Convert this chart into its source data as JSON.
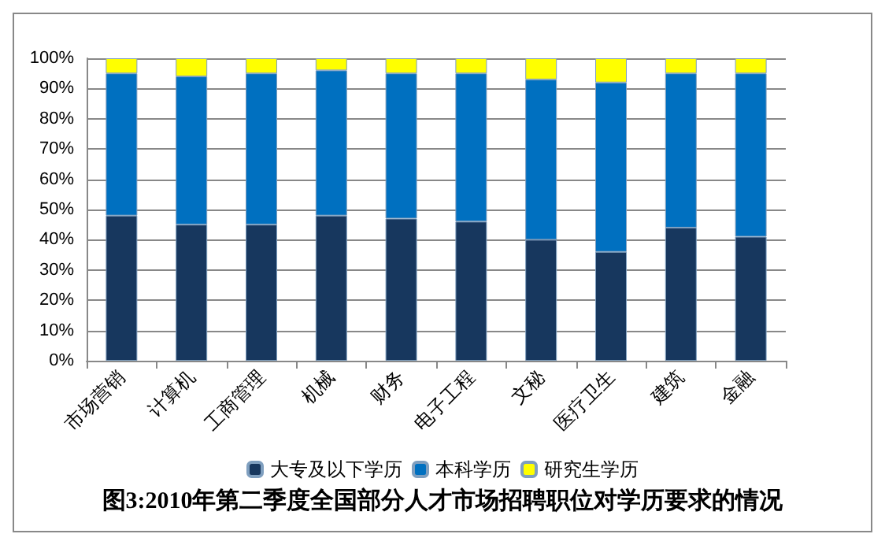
{
  "chart_data": {
    "type": "bar",
    "stacked": true,
    "title": "图3:2010年第二季度全国部分人才市场招聘职位对学历要求的情况",
    "categories": [
      "市场营销",
      "计算机",
      "工商管理",
      "机械",
      "财务",
      "电子工程",
      "文秘",
      "医疗卫生",
      "建筑",
      "金融"
    ],
    "series": [
      {
        "name": "大专及以下学历",
        "color": "#17375e",
        "values": [
          48,
          45,
          45,
          48,
          47,
          46,
          40,
          36,
          44,
          41
        ]
      },
      {
        "name": "本科学历",
        "color": "#0070c0",
        "values": [
          47,
          49,
          50,
          48,
          48,
          49,
          53,
          56,
          51,
          54
        ]
      },
      {
        "name": "研究生学历",
        "color": "#ffff00",
        "values": [
          5,
          6,
          5,
          4,
          5,
          5,
          7,
          8,
          5,
          5
        ]
      }
    ],
    "ylim": [
      0,
      100
    ],
    "yticks": [
      {
        "value": 0,
        "label": "0%"
      },
      {
        "value": 10,
        "label": "10%"
      },
      {
        "value": 20,
        "label": "20%"
      },
      {
        "value": 30,
        "label": "30%"
      },
      {
        "value": 40,
        "label": "40%"
      },
      {
        "value": 50,
        "label": "50%"
      },
      {
        "value": 60,
        "label": "60%"
      },
      {
        "value": 70,
        "label": "70%"
      },
      {
        "value": 80,
        "label": "80%"
      },
      {
        "value": 90,
        "label": "90%"
      },
      {
        "value": 100,
        "label": "100%"
      }
    ],
    "grid": "y",
    "legend": "bottom"
  }
}
